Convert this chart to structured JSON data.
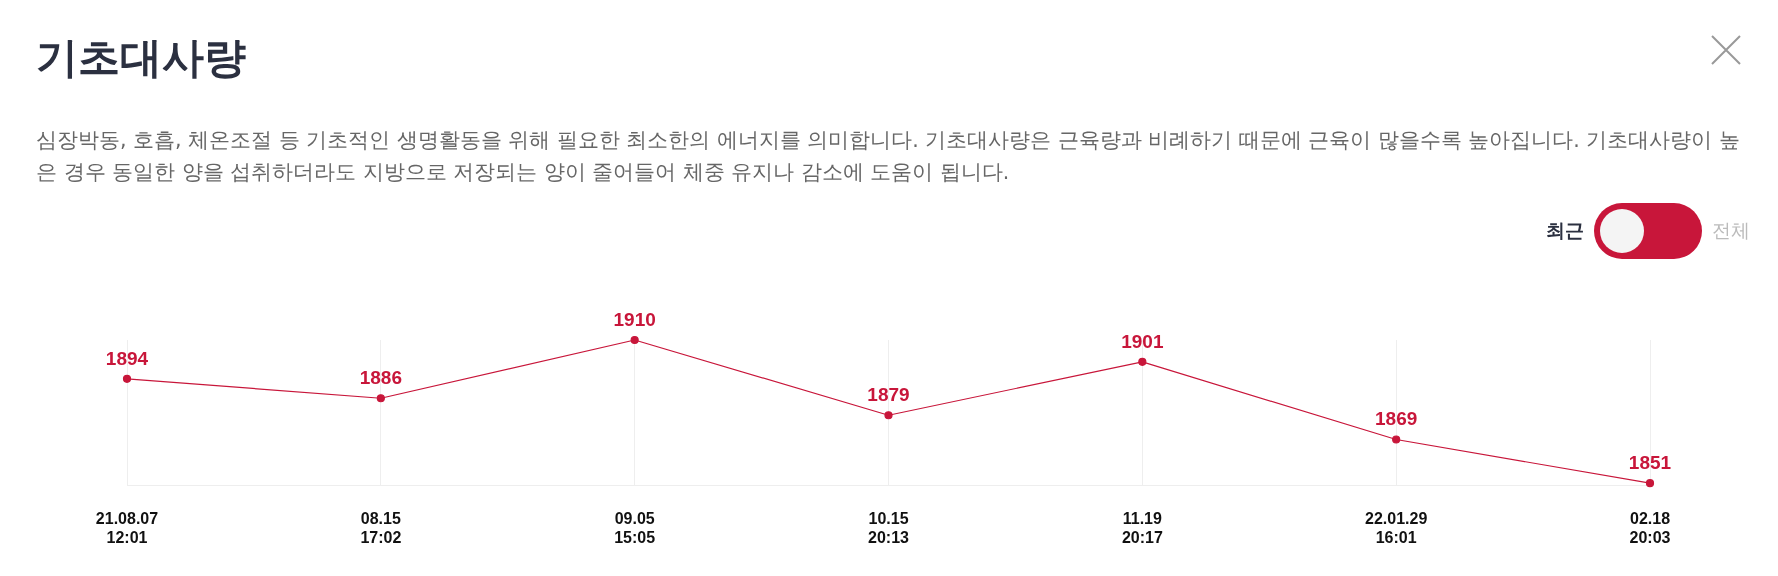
{
  "chart_data": {
    "type": "line",
    "title": "기초대사량",
    "subtitle": "심장박동, 호흡, 체온조절 등 기초적인 생명활동을 위해 필요한 최소한의 에너지를 의미합니다. 기초대사량은 근육량과 비례하기 때문에 근육이 많을수록 높아집니다. 기초대사량이 높은 경우 동일한 양을 섭취하더라도 지방으로 저장되는 양이 줄어들어 체중 유지나 감소에 도움이 됩니다.",
    "annotations": [
      "최근",
      "전체"
    ],
    "categories": [
      "21.08.07\n12:01",
      "08.15\n17:02",
      "09.05\n15:05",
      "10.15\n20:13",
      "11.19\n20:17",
      "22.01.29\n16:01",
      "02.18\n20:03"
    ],
    "series": [
      {
        "color": "#c8163a",
        "values": [
          1894,
          1886,
          1910,
          1879,
          1901,
          1869,
          1851
        ]
      }
    ],
    "data_labels": true,
    "grid": "x",
    "marker": "circle",
    "legend": false,
    "tick_labels": "x"
  }
}
